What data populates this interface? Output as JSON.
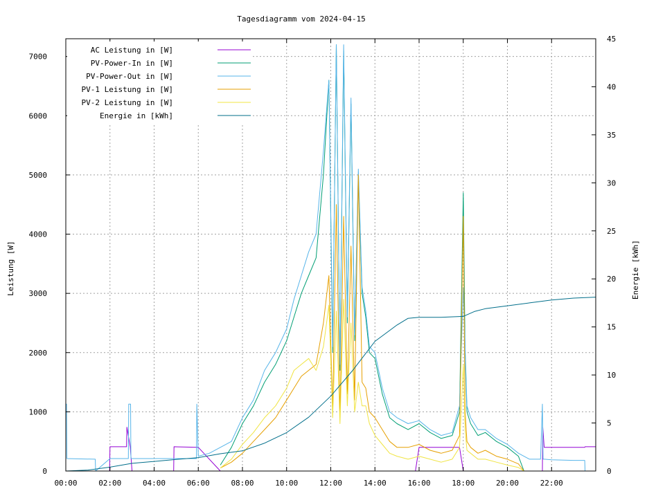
{
  "chart_data": {
    "type": "line",
    "title": "Tagesdiagramm vom 2024-04-15",
    "xlabel": "",
    "ylabel": "Leistung [W]",
    "y2label": "Energie [kWh]",
    "xlim": [
      "00:00",
      "24:00"
    ],
    "ylim": [
      0,
      7300
    ],
    "y2lim": [
      0,
      45
    ],
    "x_ticks": [
      "00:00",
      "02:00",
      "04:00",
      "06:00",
      "08:00",
      "10:00",
      "12:00",
      "14:00",
      "16:00",
      "18:00",
      "20:00",
      "22:00"
    ],
    "y_ticks": [
      0,
      1000,
      2000,
      3000,
      4000,
      5000,
      6000,
      7000
    ],
    "y2_ticks": [
      0,
      5,
      10,
      15,
      20,
      25,
      30,
      35,
      40,
      45
    ],
    "grid": true,
    "legend_position": "top-left",
    "series": [
      {
        "name": "AC Leistung in [W]",
        "axis": "left",
        "color": "#9400d3",
        "x": [
          "00:00",
          "01:59",
          "02:00",
          "02:45",
          "02:46",
          "02:55",
          "03:00",
          "04:53",
          "04:54",
          "06:00",
          "07:00",
          "15:50",
          "16:00",
          "17:50",
          "18:00",
          "20:40",
          "21:00",
          "21:35",
          "21:36",
          "21:40",
          "23:30",
          "23:31",
          "24:00"
        ],
        "values": [
          0,
          0,
          410,
          410,
          740,
          410,
          0,
          0,
          410,
          400,
          0,
          0,
          400,
          400,
          0,
          0,
          0,
          0,
          740,
          400,
          400,
          410,
          410
        ]
      },
      {
        "name": "PV-Power-In in [W]",
        "axis": "left",
        "color": "#009e73",
        "x": [
          "07:00",
          "07:30",
          "08:00",
          "08:30",
          "09:00",
          "09:30",
          "10:00",
          "10:20",
          "10:40",
          "11:00",
          "11:20",
          "11:40",
          "11:55",
          "12:05",
          "12:15",
          "12:25",
          "12:35",
          "12:45",
          "12:55",
          "13:05",
          "13:15",
          "13:25",
          "13:35",
          "13:45",
          "14:00",
          "14:20",
          "14:40",
          "15:00",
          "15:30",
          "16:00",
          "16:30",
          "17:00",
          "17:30",
          "17:50",
          "18:00",
          "18:05",
          "18:10",
          "18:20",
          "18:40",
          "19:00",
          "19:30",
          "20:00",
          "20:30",
          "20:45"
        ],
        "values": [
          100,
          400,
          800,
          1100,
          1500,
          1800,
          2200,
          2600,
          3000,
          3300,
          3600,
          5000,
          6600,
          2000,
          7200,
          1700,
          7100,
          2500,
          6200,
          2200,
          5000,
          3000,
          2600,
          2000,
          1900,
          1300,
          900,
          800,
          700,
          800,
          650,
          550,
          600,
          1000,
          4700,
          2000,
          1000,
          800,
          600,
          650,
          500,
          400,
          250,
          0
        ]
      },
      {
        "name": "PV-Power-Out in [W]",
        "axis": "left",
        "color": "#56b4e9",
        "x": [
          "00:00",
          "00:02",
          "00:03",
          "01:20",
          "01:21",
          "02:00",
          "02:50",
          "02:51",
          "02:56",
          "02:57",
          "04:00",
          "05:55",
          "05:56",
          "06:00",
          "06:30",
          "07:00",
          "07:30",
          "08:00",
          "08:30",
          "09:00",
          "09:30",
          "10:00",
          "10:20",
          "10:40",
          "11:00",
          "11:20",
          "11:40",
          "11:55",
          "12:05",
          "12:15",
          "12:25",
          "12:35",
          "12:45",
          "12:55",
          "13:05",
          "13:15",
          "13:25",
          "13:35",
          "13:45",
          "14:00",
          "14:20",
          "14:40",
          "15:00",
          "15:30",
          "16:00",
          "16:30",
          "17:00",
          "17:30",
          "17:50",
          "18:00",
          "18:05",
          "18:10",
          "18:20",
          "18:40",
          "19:00",
          "19:30",
          "20:00",
          "20:30",
          "21:00",
          "21:30",
          "21:35",
          "21:37",
          "21:40",
          "22:00",
          "23:00",
          "23:30",
          "23:31",
          "24:00"
        ],
        "values": [
          1130,
          1130,
          210,
          200,
          0,
          210,
          210,
          1130,
          1130,
          210,
          210,
          210,
          1130,
          250,
          300,
          400,
          500,
          900,
          1200,
          1700,
          2000,
          2400,
          2900,
          3300,
          3700,
          4000,
          5400,
          6600,
          2100,
          7200,
          1800,
          7200,
          2600,
          6300,
          2300,
          5100,
          3100,
          2700,
          2100,
          2000,
          1400,
          1000,
          900,
          800,
          850,
          700,
          600,
          650,
          1100,
          3100,
          2100,
          1100,
          900,
          700,
          700,
          550,
          450,
          300,
          200,
          200,
          1130,
          200,
          200,
          190,
          180,
          180,
          0,
          0
        ]
      },
      {
        "name": "PV-1 Leistung in [W]",
        "axis": "left",
        "color": "#e69f00",
        "x": [
          "07:00",
          "07:30",
          "08:00",
          "08:30",
          "09:00",
          "09:30",
          "10:00",
          "10:20",
          "10:40",
          "11:00",
          "11:20",
          "11:40",
          "11:55",
          "12:05",
          "12:15",
          "12:25",
          "12:35",
          "12:45",
          "12:55",
          "13:05",
          "13:15",
          "13:25",
          "13:35",
          "13:45",
          "14:00",
          "14:20",
          "14:40",
          "15:00",
          "15:30",
          "16:00",
          "16:30",
          "17:00",
          "17:30",
          "17:50",
          "18:00",
          "18:05",
          "18:10",
          "18:20",
          "18:40",
          "19:00",
          "19:30",
          "20:00",
          "20:30",
          "20:45"
        ],
        "values": [
          50,
          150,
          300,
          500,
          700,
          900,
          1200,
          1400,
          1600,
          1700,
          1800,
          2500,
          3300,
          1000,
          4500,
          900,
          4300,
          1300,
          3800,
          1200,
          5000,
          1500,
          1400,
          1000,
          900,
          700,
          500,
          400,
          400,
          450,
          350,
          300,
          350,
          600,
          4300,
          1000,
          500,
          400,
          300,
          350,
          250,
          200,
          120,
          0
        ]
      },
      {
        "name": "PV-2 Leistung in [W]",
        "axis": "left",
        "color": "#f0e442",
        "x": [
          "07:00",
          "07:30",
          "08:00",
          "08:30",
          "09:00",
          "09:30",
          "10:00",
          "10:20",
          "10:40",
          "11:00",
          "11:20",
          "11:40",
          "11:55",
          "12:05",
          "12:15",
          "12:25",
          "12:35",
          "12:45",
          "12:55",
          "13:05",
          "13:15",
          "13:25",
          "13:35",
          "13:45",
          "14:00",
          "14:20",
          "14:40",
          "15:00",
          "15:30",
          "16:00",
          "16:30",
          "17:00",
          "17:30",
          "17:50",
          "18:00",
          "18:05",
          "18:10",
          "18:20",
          "18:40",
          "19:00",
          "19:30",
          "20:00",
          "20:30",
          "20:45"
        ],
        "values": [
          50,
          200,
          450,
          650,
          900,
          1100,
          1400,
          1700,
          1800,
          1900,
          1700,
          2100,
          2800,
          900,
          2700,
          800,
          2900,
          1100,
          2500,
          1000,
          1500,
          1100,
          1100,
          800,
          600,
          450,
          300,
          250,
          200,
          250,
          200,
          150,
          200,
          400,
          1800,
          700,
          350,
          300,
          200,
          200,
          150,
          100,
          60,
          0
        ]
      },
      {
        "name": "Energie in [kWh]",
        "axis": "right",
        "color": "#006e8a",
        "x": [
          "00:00",
          "01:00",
          "02:00",
          "03:00",
          "04:00",
          "05:00",
          "06:00",
          "07:00",
          "08:00",
          "09:00",
          "10:00",
          "11:00",
          "12:00",
          "13:00",
          "14:00",
          "15:00",
          "15:30",
          "16:00",
          "17:00",
          "18:00",
          "18:30",
          "19:00",
          "20:00",
          "21:00",
          "22:00",
          "23:00",
          "24:00"
        ],
        "values": [
          0,
          0.1,
          0.4,
          0.8,
          1.0,
          1.2,
          1.4,
          1.8,
          2.1,
          2.9,
          4.0,
          5.6,
          7.8,
          10.5,
          13.5,
          15.2,
          15.9,
          16.0,
          16.0,
          16.1,
          16.6,
          16.9,
          17.2,
          17.5,
          17.8,
          18.0,
          18.1
        ]
      }
    ]
  }
}
